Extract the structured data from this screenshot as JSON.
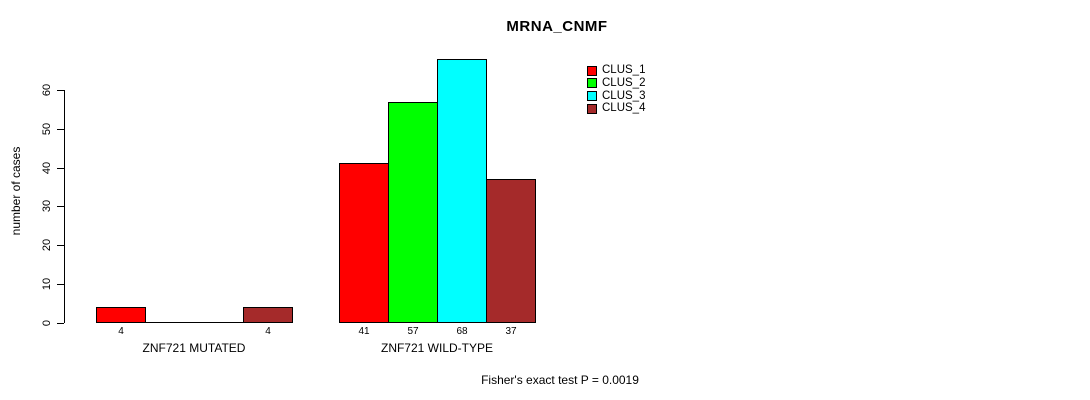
{
  "chart_data": {
    "type": "bar",
    "title": "MRNA_CNMF",
    "ylabel": "number of cases",
    "xlabel": "",
    "categories": [
      "ZNF721 MUTATED",
      "ZNF721 WILD-TYPE"
    ],
    "series": [
      {
        "name": "CLUS_1",
        "color": "#ff0000",
        "values": [
          4,
          41
        ]
      },
      {
        "name": "CLUS_2",
        "color": "#00ff00",
        "values": [
          0,
          57
        ]
      },
      {
        "name": "CLUS_3",
        "color": "#00ffff",
        "values": [
          0,
          68
        ]
      },
      {
        "name": "CLUS_4",
        "color": "#a52a2a",
        "values": [
          4,
          37
        ]
      }
    ],
    "yticks": [
      0,
      10,
      20,
      30,
      40,
      50,
      60
    ],
    "ylim": [
      0,
      68
    ],
    "grid": false,
    "legend_position": "top-right",
    "value_labels": {
      "shown_below_bars": true,
      "hide_zero": true
    },
    "annotation": "Fisher's exact test P = 0.0019"
  }
}
